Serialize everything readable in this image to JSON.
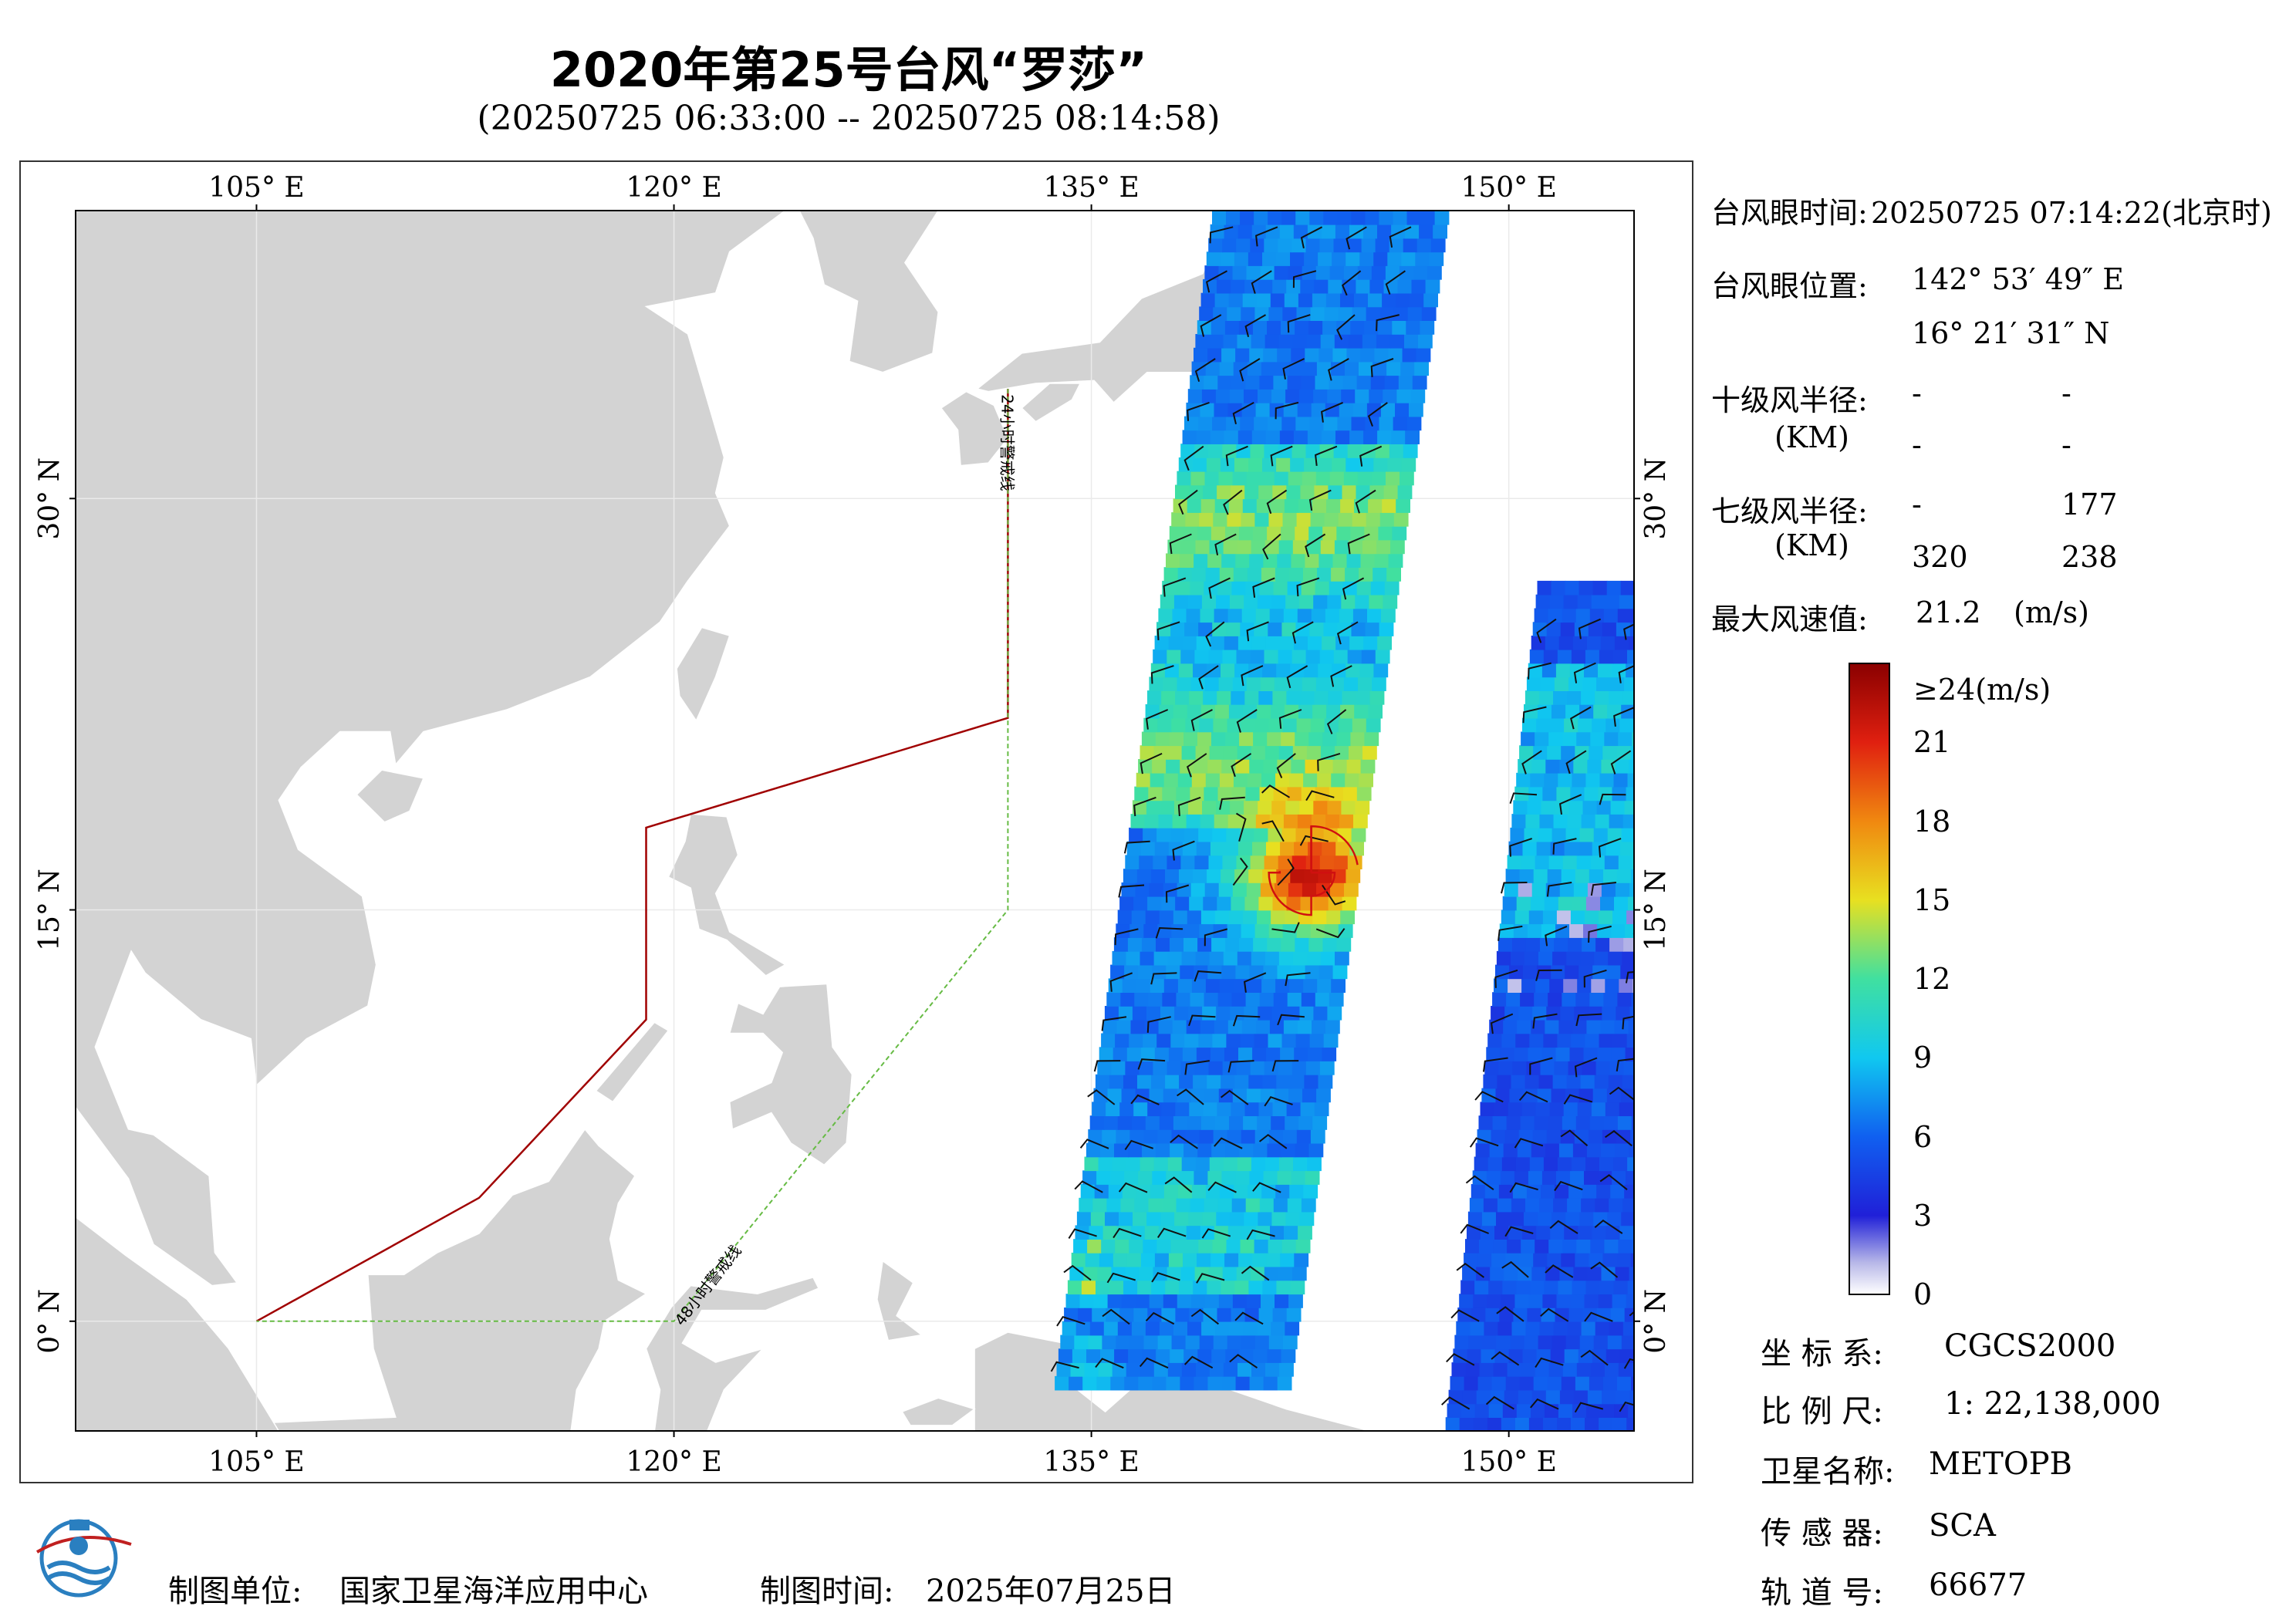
{
  "header": {
    "title": "2020年第25号台风“罗莎”",
    "subtitle": "(20250725 06:33:00 -- 20250725 08:14:58)"
  },
  "map": {
    "lon_range": [
      98.5,
      154.5
    ],
    "lat_range": [
      -4,
      40.5
    ],
    "lon_ticks": [
      {
        "value": 105,
        "label": "105° E"
      },
      {
        "value": 120,
        "label": "120° E"
      },
      {
        "value": 135,
        "label": "135° E"
      },
      {
        "value": 150,
        "label": "150° E"
      }
    ],
    "lat_ticks": [
      {
        "value": 0,
        "label": "0° N"
      },
      {
        "value": 15,
        "label": "15° N"
      },
      {
        "value": 30,
        "label": "30° N"
      }
    ],
    "land_color": "#d3d3d3",
    "ocean_color": "#ffffff",
    "warning_24h": {
      "label": "24小时警戒线",
      "color": "#a00000",
      "path": [
        [
          132,
          34
        ],
        [
          132,
          22
        ],
        [
          119,
          18
        ],
        [
          119,
          11
        ],
        [
          113,
          4.5
        ],
        [
          105,
          0
        ]
      ]
    },
    "warning_48h": {
      "label": "48小时警戒线",
      "color": "#66bb44",
      "path": [
        [
          132,
          34
        ],
        [
          132,
          15
        ],
        [
          120,
          0
        ],
        [
          105,
          0
        ]
      ]
    },
    "typhoon_center": {
      "lon": 142.9,
      "lat": 16.36
    }
  },
  "info": {
    "eye_time_label": "台风眼时间:",
    "eye_time_value": "20250725 07:14:22(北京时)",
    "eye_pos_label": "台风眼位置:",
    "eye_lon": "142° 53′ 49″ E",
    "eye_lat": "16° 21′ 31″ N",
    "r10_label": "十级风半径:",
    "r10_unit": "(KM)",
    "r10_values": [
      "-",
      "-",
      "-",
      "-"
    ],
    "r7_label": "七级风半径:",
    "r7_unit": "(KM)",
    "r7_values": [
      "-",
      "177",
      "320",
      "238"
    ],
    "max_wind_label": "最大风速值:",
    "max_wind_value": "21.2",
    "max_wind_unit": "(m/s)"
  },
  "colorbar": {
    "labels": [
      "≥24(m/s)",
      "21",
      "18",
      "15",
      "12",
      "9",
      "6",
      "3",
      "0"
    ],
    "values": [
      24,
      21,
      18,
      15,
      12,
      9,
      6,
      3,
      0
    ]
  },
  "meta": {
    "crs_label": "坐 标 系:",
    "crs_value": "CGCS2000",
    "scale_label": "比 例 尺:",
    "scale_value": "1: 22,138,000",
    "satellite_label": "卫星名称:",
    "satellite_value": "METOPB",
    "sensor_label": "传 感 器:",
    "sensor_value": "SCA",
    "orbit_label": "轨 道 号:",
    "orbit_value": "66677"
  },
  "footer": {
    "producer_label": "制图单位:",
    "producer_value": "国家卫星海洋应用中心",
    "date_label": "制图时间:",
    "date_value": "2025年07月25日"
  }
}
